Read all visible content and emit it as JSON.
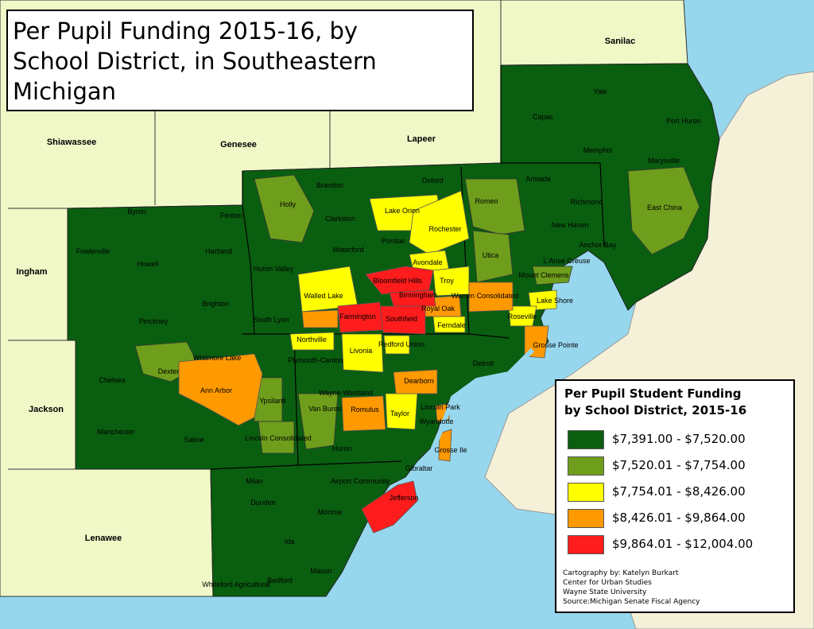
{
  "title": {
    "lines": [
      "Per Pupil Funding 2015-16, by",
      "School District, in Southeastern",
      "Michigan"
    ]
  },
  "legend": {
    "title_lines": [
      "Per Pupil Student Funding",
      "by School District, 2015-16"
    ],
    "items": [
      {
        "label": "$7,391.00 - $7,520.00",
        "color": "#0a5e10"
      },
      {
        "label": "$7,520.01 - $7,754.00",
        "color": "#6e9e1c"
      },
      {
        "label": "$7,754.01 - $8,426.00",
        "color": "#ffff00"
      },
      {
        "label": "$8,426.01 - $9,864.00",
        "color": "#ff9900"
      },
      {
        "label": "$9,864.01 - $12,004.00",
        "color": "#ff1c1c"
      }
    ],
    "credits": [
      "Cartography by: Katelyn Burkart",
      "Center for Urban Studies",
      "Wayne State University",
      "Source:Michigan Senate Fiscal Agency"
    ]
  },
  "colors": {
    "water": "#97d7ee",
    "outside_land": "#f5f1d8",
    "other_county": "#f0f8c8",
    "boundary": "#333333"
  },
  "counties": [
    {
      "name": "Sanilac"
    },
    {
      "name": "Shiawassee"
    },
    {
      "name": "Genesee"
    },
    {
      "name": "Lapeer"
    },
    {
      "name": "Ingham"
    },
    {
      "name": "Jackson"
    },
    {
      "name": "Lenawee"
    }
  ],
  "districts": [
    {
      "name": "Yale",
      "class": 1
    },
    {
      "name": "Capac",
      "class": 1
    },
    {
      "name": "Port Huron",
      "class": 1
    },
    {
      "name": "Memphis",
      "class": 1
    },
    {
      "name": "Marysville",
      "class": 1
    },
    {
      "name": "Armada",
      "class": 1
    },
    {
      "name": "Richmond",
      "class": 1
    },
    {
      "name": "East China",
      "class": 2
    },
    {
      "name": "Romeo",
      "class": 2
    },
    {
      "name": "New Haven",
      "class": 1
    },
    {
      "name": "Anchor Bay",
      "class": 1
    },
    {
      "name": "L'Anse Creuse",
      "class": 1
    },
    {
      "name": "Utica",
      "class": 2
    },
    {
      "name": "Mount Clemens",
      "class": 2
    },
    {
      "name": "Lake Shore",
      "class": 3
    },
    {
      "name": "Warren Consolidated",
      "class": 4
    },
    {
      "name": "Roseville",
      "class": 3
    },
    {
      "name": "Grosse Pointe",
      "class": 4
    },
    {
      "name": "Brandon",
      "class": 1
    },
    {
      "name": "Oxford",
      "class": 1
    },
    {
      "name": "Holly",
      "class": 2
    },
    {
      "name": "Clarkston",
      "class": 1
    },
    {
      "name": "Lake Orion",
      "class": 3
    },
    {
      "name": "Rochester",
      "class": 3
    },
    {
      "name": "Pontiac",
      "class": 1
    },
    {
      "name": "Waterford",
      "class": 1
    },
    {
      "name": "Avondale",
      "class": 3
    },
    {
      "name": "Huron Valley",
      "class": 1
    },
    {
      "name": "Bloomfield Hills",
      "class": 5
    },
    {
      "name": "Troy",
      "class": 3
    },
    {
      "name": "Walled Lake",
      "class": 3
    },
    {
      "name": "Birmingham",
      "class": 5
    },
    {
      "name": "Royal Oak",
      "class": 4
    },
    {
      "name": "South Lyon",
      "class": 1
    },
    {
      "name": "Farmington",
      "class": 5
    },
    {
      "name": "Southfield",
      "class": 5
    },
    {
      "name": "Ferndale",
      "class": 3
    },
    {
      "name": "Byron",
      "class": 1
    },
    {
      "name": "Fenton",
      "class": 1
    },
    {
      "name": "Fowlerville",
      "class": 1
    },
    {
      "name": "Howell",
      "class": 1
    },
    {
      "name": "Hartland",
      "class": 1
    },
    {
      "name": "Brighton",
      "class": 1
    },
    {
      "name": "Pinckney",
      "class": 1
    },
    {
      "name": "Northville",
      "class": 3
    },
    {
      "name": "Plymouth-Canton",
      "class": 1
    },
    {
      "name": "Livonia",
      "class": 3
    },
    {
      "name": "Redford Union",
      "class": 3
    },
    {
      "name": "Detroit",
      "class": 1
    },
    {
      "name": "Dearborn",
      "class": 4
    },
    {
      "name": "Whitmore Lake",
      "class": 1
    },
    {
      "name": "Dexter",
      "class": 2
    },
    {
      "name": "Chelsea",
      "class": 1
    },
    {
      "name": "Ann Arbor",
      "class": 4
    },
    {
      "name": "Wayne-Westland",
      "class": 1
    },
    {
      "name": "Ypsilanti",
      "class": 2
    },
    {
      "name": "Van Buren",
      "class": 2
    },
    {
      "name": "Romulus",
      "class": 4
    },
    {
      "name": "Taylor",
      "class": 3
    },
    {
      "name": "Lincoln Park",
      "class": 1
    },
    {
      "name": "Wyandotte",
      "class": 4
    },
    {
      "name": "Manchester",
      "class": 1
    },
    {
      "name": "Saline",
      "class": 1
    },
    {
      "name": "Lincoln Consolidated",
      "class": 2
    },
    {
      "name": "Huron",
      "class": 1
    },
    {
      "name": "Grosse Ile",
      "class": 4
    },
    {
      "name": "Gibraltar",
      "class": 1
    },
    {
      "name": "Milan",
      "class": 1
    },
    {
      "name": "Airport Community",
      "class": 1
    },
    {
      "name": "Jefferson",
      "class": 5
    },
    {
      "name": "Dundee",
      "class": 1
    },
    {
      "name": "Monroe",
      "class": 1
    },
    {
      "name": "Ida",
      "class": 1
    },
    {
      "name": "Mason",
      "class": 1
    },
    {
      "name": "Whiteford Agricultural",
      "class": 1
    },
    {
      "name": "Bedford",
      "class": 1
    }
  ]
}
